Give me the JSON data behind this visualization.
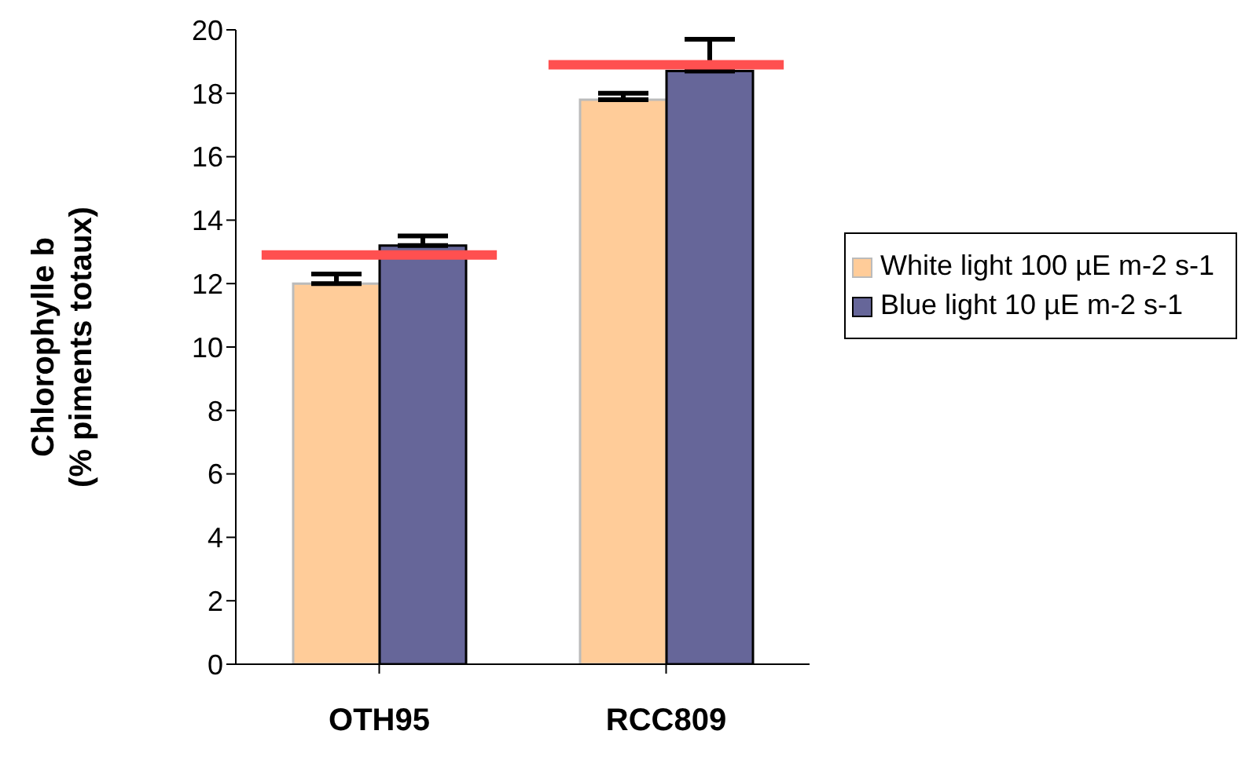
{
  "chart_data": {
    "type": "bar",
    "ylabel": "Chlorophylle b\n(% piments totaux)",
    "categories": [
      "OTH95",
      "RCC809"
    ],
    "series": [
      {
        "name": "White light 100 µE m-2 s-1",
        "color": "#ffcc99",
        "values": [
          12.0,
          17.8
        ],
        "errors": [
          [
            12.0,
            12.3
          ],
          [
            17.8,
            18.0
          ]
        ]
      },
      {
        "name": "Blue light 10 µE m-2 s-1",
        "color": "#666699",
        "values": [
          13.2,
          18.7
        ],
        "errors": [
          [
            13.2,
            13.5
          ],
          [
            18.7,
            19.7
          ]
        ]
      }
    ],
    "ref_lines": [
      {
        "axis": "y",
        "value": 12.9,
        "color": "#ff5050"
      },
      {
        "axis": "y",
        "value": 18.9,
        "color": "#ff5050"
      }
    ],
    "ylim": [
      0,
      20
    ],
    "yticks": [
      0,
      2,
      4,
      6,
      8,
      10,
      12,
      14,
      16,
      18,
      20
    ],
    "grid": false,
    "legend": "right"
  }
}
